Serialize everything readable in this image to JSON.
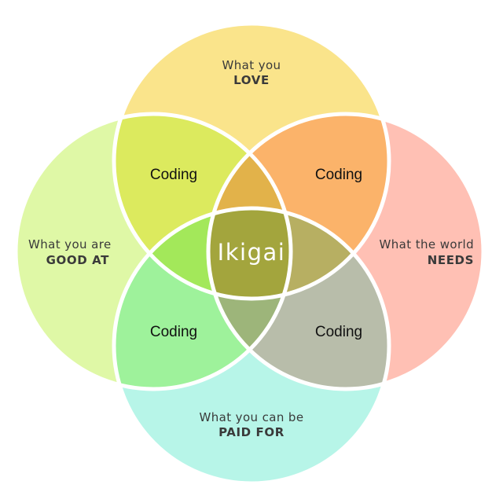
{
  "diagram": {
    "circles": {
      "love": {
        "line1": "What you",
        "line2": "LOVE",
        "color": "#fae48b"
      },
      "good": {
        "line1": "What you are",
        "line2": "GOOD AT",
        "color": "#dff8a6"
      },
      "needs": {
        "line1": "What the world",
        "line2": "NEEDS",
        "color": "#ffc0b4"
      },
      "paid": {
        "line1": "What you can be",
        "line2": "PAID FOR",
        "color": "#b7f5e8"
      }
    },
    "overlaps": {
      "love_good": {
        "label": "Coding",
        "color": "#dcea5e"
      },
      "love_needs": {
        "label": "Coding",
        "color": "#fbb36a"
      },
      "good_paid": {
        "label": "Coding",
        "color": "#9ef29b"
      },
      "needs_paid": {
        "label": "Coding",
        "color": "#b8bdaa"
      },
      "love_good_needs_top": {
        "color": "#e2b24a"
      },
      "good_paid_left": {
        "color": "#a3e85a"
      },
      "needs_right": {
        "color": "#b7af62"
      },
      "paid_bottom": {
        "color": "#9db57a"
      }
    },
    "center": {
      "label": "Ikigai",
      "color": "#a3a53d"
    },
    "stroke_color": "#ffffff"
  }
}
